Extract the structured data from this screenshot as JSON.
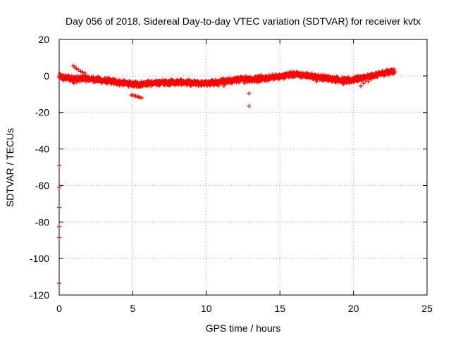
{
  "chart_data": {
    "type": "scatter",
    "title": "Day 056 of 2018, Sidereal Day-to-day VTEC variation (SDTVAR) for receiver kvtx",
    "xlabel": "GPS time / hours",
    "ylabel": "SDTVAR / TECUs",
    "xlim": [
      0,
      25
    ],
    "ylim": [
      -120,
      20
    ],
    "xticks": [
      0,
      5,
      10,
      15,
      20,
      25
    ],
    "yticks": [
      20,
      0,
      -20,
      -40,
      -60,
      -80,
      -100,
      -120
    ],
    "grid": true,
    "marker": "+",
    "series": [
      {
        "name": "SDTVAR",
        "color": "#ff0000",
        "trend": [
          [
            0.0,
            -0.5
          ],
          [
            0.5,
            -1.0
          ],
          [
            1.0,
            -1.5
          ],
          [
            1.5,
            -1.5
          ],
          [
            2.0,
            -1.5
          ],
          [
            2.5,
            -2.0
          ],
          [
            3.0,
            -2.5
          ],
          [
            3.5,
            -3.0
          ],
          [
            4.0,
            -3.5
          ],
          [
            4.5,
            -4.0
          ],
          [
            5.0,
            -4.5
          ],
          [
            5.5,
            -4.5
          ],
          [
            6.0,
            -4.0
          ],
          [
            6.5,
            -4.0
          ],
          [
            7.0,
            -3.5
          ],
          [
            7.5,
            -3.5
          ],
          [
            8.0,
            -3.5
          ],
          [
            8.5,
            -3.5
          ],
          [
            9.0,
            -4.0
          ],
          [
            9.5,
            -4.0
          ],
          [
            10.0,
            -4.0
          ],
          [
            10.5,
            -3.5
          ],
          [
            11.0,
            -3.0
          ],
          [
            11.5,
            -2.5
          ],
          [
            12.0,
            -2.0
          ],
          [
            12.5,
            -1.5
          ],
          [
            13.0,
            -2.0
          ],
          [
            13.5,
            -1.5
          ],
          [
            14.0,
            -1.5
          ],
          [
            14.5,
            -0.5
          ],
          [
            15.0,
            -0.5
          ],
          [
            15.5,
            0.5
          ],
          [
            16.0,
            1.0
          ],
          [
            16.5,
            0.5
          ],
          [
            17.0,
            0.0
          ],
          [
            17.5,
            -0.5
          ],
          [
            18.0,
            -1.0
          ],
          [
            18.5,
            -1.5
          ],
          [
            19.0,
            -2.0
          ],
          [
            19.5,
            -2.5
          ],
          [
            20.0,
            -2.0
          ],
          [
            20.5,
            -1.0
          ],
          [
            21.0,
            -0.5
          ],
          [
            21.5,
            0.5
          ],
          [
            22.0,
            1.5
          ],
          [
            22.5,
            2.5
          ],
          [
            22.8,
            2.5
          ]
        ],
        "extra_points": [
          [
            0.95,
            5.5
          ],
          [
            1.05,
            5.0
          ],
          [
            1.15,
            4.0
          ],
          [
            1.3,
            3.5
          ],
          [
            1.45,
            2.5
          ],
          [
            1.6,
            2.0
          ],
          [
            1.75,
            1.5
          ],
          [
            1.0,
            -4.0
          ],
          [
            1.2,
            -3.5
          ],
          [
            1.4,
            -3.0
          ],
          [
            0.8,
            -2.5
          ],
          [
            0.3,
            -2.5
          ],
          [
            4.9,
            -10.5
          ],
          [
            5.0,
            -10.5
          ],
          [
            5.1,
            -10.8
          ],
          [
            5.2,
            -11.0
          ],
          [
            5.3,
            -11.3
          ],
          [
            5.4,
            -11.5
          ],
          [
            5.5,
            -11.8
          ],
          [
            5.6,
            -12.0
          ],
          [
            10.8,
            -5.5
          ],
          [
            11.2,
            -5.5
          ],
          [
            12.2,
            -3.5
          ],
          [
            12.6,
            -4.0
          ],
          [
            12.9,
            -9.5
          ],
          [
            12.9,
            -16.5
          ],
          [
            13.3,
            -0.5
          ],
          [
            13.7,
            0.5
          ],
          [
            13.5,
            -3.5
          ],
          [
            17.5,
            -3.0
          ],
          [
            18.2,
            -2.5
          ],
          [
            18.9,
            -3.5
          ],
          [
            19.3,
            -4.5
          ],
          [
            19.7,
            -4.0
          ],
          [
            19.9,
            -3.0
          ],
          [
            20.5,
            -5.5
          ],
          [
            20.7,
            -4.0
          ],
          [
            20.3,
            0.0
          ],
          [
            21.0,
            -3.0
          ],
          [
            21.4,
            -0.5
          ],
          [
            22.1,
            0.5
          ],
          [
            22.6,
            1.5
          ],
          [
            0.0,
            -49.0
          ],
          [
            0.0,
            -61.0
          ],
          [
            0.0,
            -72.0
          ],
          [
            0.0,
            -82.5
          ],
          [
            0.0,
            -88.5
          ],
          [
            0.0,
            -113.5
          ]
        ]
      }
    ]
  }
}
